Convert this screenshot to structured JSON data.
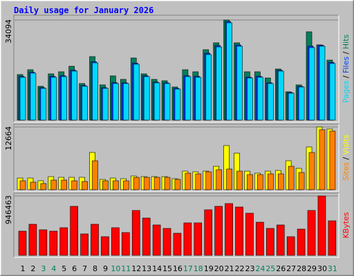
{
  "chart_data": [
    {
      "type": "bar",
      "title": "Daily usage for January 2026",
      "legend_separator": " / ",
      "ylim": [
        0,
        34094
      ],
      "yticks": [
        34094
      ],
      "series": [
        {
          "name": "Hits",
          "color": "#00805c",
          "values": [
            15520,
            17160,
            11520,
            15750,
            16460,
            18340,
            12460,
            21630,
            11990,
            15050,
            13870,
            21160,
            15750,
            13870,
            13400,
            11280,
            17160,
            16460,
            23980,
            26330,
            34094,
            26330,
            16460,
            16460,
            14340,
            17400,
            9640,
            11990,
            30090,
            25630,
            20450
          ]
        },
        {
          "name": "Files",
          "color": "#0040ff",
          "values": [
            14900,
            16300,
            11050,
            14900,
            15100,
            17000,
            11800,
            19900,
            11050,
            12750,
            12700,
            19400,
            15100,
            12950,
            12700,
            10800,
            15100,
            14900,
            22800,
            25400,
            33600,
            25600,
            14600,
            14900,
            12700,
            17000,
            9400,
            11500,
            25200,
            25500,
            19700
          ]
        },
        {
          "name": "Pages",
          "color": "#00d8ff",
          "values": [
            14580,
            15990,
            10810,
            14580,
            14810,
            16690,
            11520,
            19510,
            10810,
            12460,
            12460,
            19040,
            14810,
            12700,
            12460,
            10580,
            14810,
            14580,
            22330,
            24920,
            33150,
            25160,
            14340,
            14580,
            12460,
            16690,
            9170,
            11280,
            24690,
            25160,
            19280
          ]
        }
      ]
    },
    {
      "type": "bar",
      "legend_separator": " / ",
      "ylim": [
        0,
        12664
      ],
      "yticks": [
        12664
      ],
      "series": [
        {
          "name": "Visits",
          "color": "#ffff00",
          "values": [
            2366,
            2366,
            1810,
            2645,
            2506,
            2506,
            2506,
            7517,
            2088,
            2366,
            2227,
            2784,
            2645,
            2645,
            2645,
            2227,
            3758,
            3619,
            3758,
            4733,
            8909,
            7378,
            3758,
            3341,
            3758,
            3898,
            5846,
            4315,
            8630,
            12664,
            12250
          ]
        },
        {
          "name": "Sites",
          "color": "#ff8000",
          "values": [
            1810,
            1531,
            1253,
            1949,
            1949,
            1810,
            1670,
            5846,
            1810,
            1810,
            1810,
            2506,
            2506,
            2506,
            2506,
            2088,
            3341,
            3202,
            3619,
            4037,
            4176,
            3758,
            3062,
            3062,
            3202,
            3202,
            4733,
            3480,
            7517,
            12110,
            11832
          ]
        }
      ]
    },
    {
      "type": "bar",
      "legend_separator": " / ",
      "ylim": [
        0,
        946463
      ],
      "yticks": [
        946463
      ],
      "categories": [
        "1",
        "2",
        "3",
        "4",
        "5",
        "6",
        "7",
        "8",
        "9",
        "10",
        "11",
        "12",
        "13",
        "14",
        "15",
        "16",
        "17",
        "18",
        "19",
        "20",
        "21",
        "22",
        "23",
        "24",
        "25",
        "26",
        "27",
        "28",
        "29",
        "30",
        "31"
      ],
      "category_colors": [
        "#000000",
        "#000000",
        "#00805c",
        "#00805c",
        "#000000",
        "#000000",
        "#000000",
        "#000000",
        "#000000",
        "#00805c",
        "#00805c",
        "#000000",
        "#000000",
        "#000000",
        "#000000",
        "#000000",
        "#00805c",
        "#00805c",
        "#000000",
        "#000000",
        "#000000",
        "#000000",
        "#000000",
        "#00805c",
        "#00805c",
        "#000000",
        "#000000",
        "#000000",
        "#000000",
        "#000000",
        "#00805c"
      ],
      "series": [
        {
          "name": "KBytes",
          "color": "#ff0000",
          "values": [
            385175,
            495225,
            407185,
            385175,
            440200,
            781355,
            341155,
            495225,
            297135,
            440200,
            363165,
            715325,
            594270,
            484220,
            429195,
            352160,
            517235,
            517235,
            726330,
            781355,
            825375,
            770350,
            671305,
            528240,
            429195,
            484220,
            297135,
            418190,
            715325,
            946463,
            550250
          ]
        }
      ]
    }
  ]
}
